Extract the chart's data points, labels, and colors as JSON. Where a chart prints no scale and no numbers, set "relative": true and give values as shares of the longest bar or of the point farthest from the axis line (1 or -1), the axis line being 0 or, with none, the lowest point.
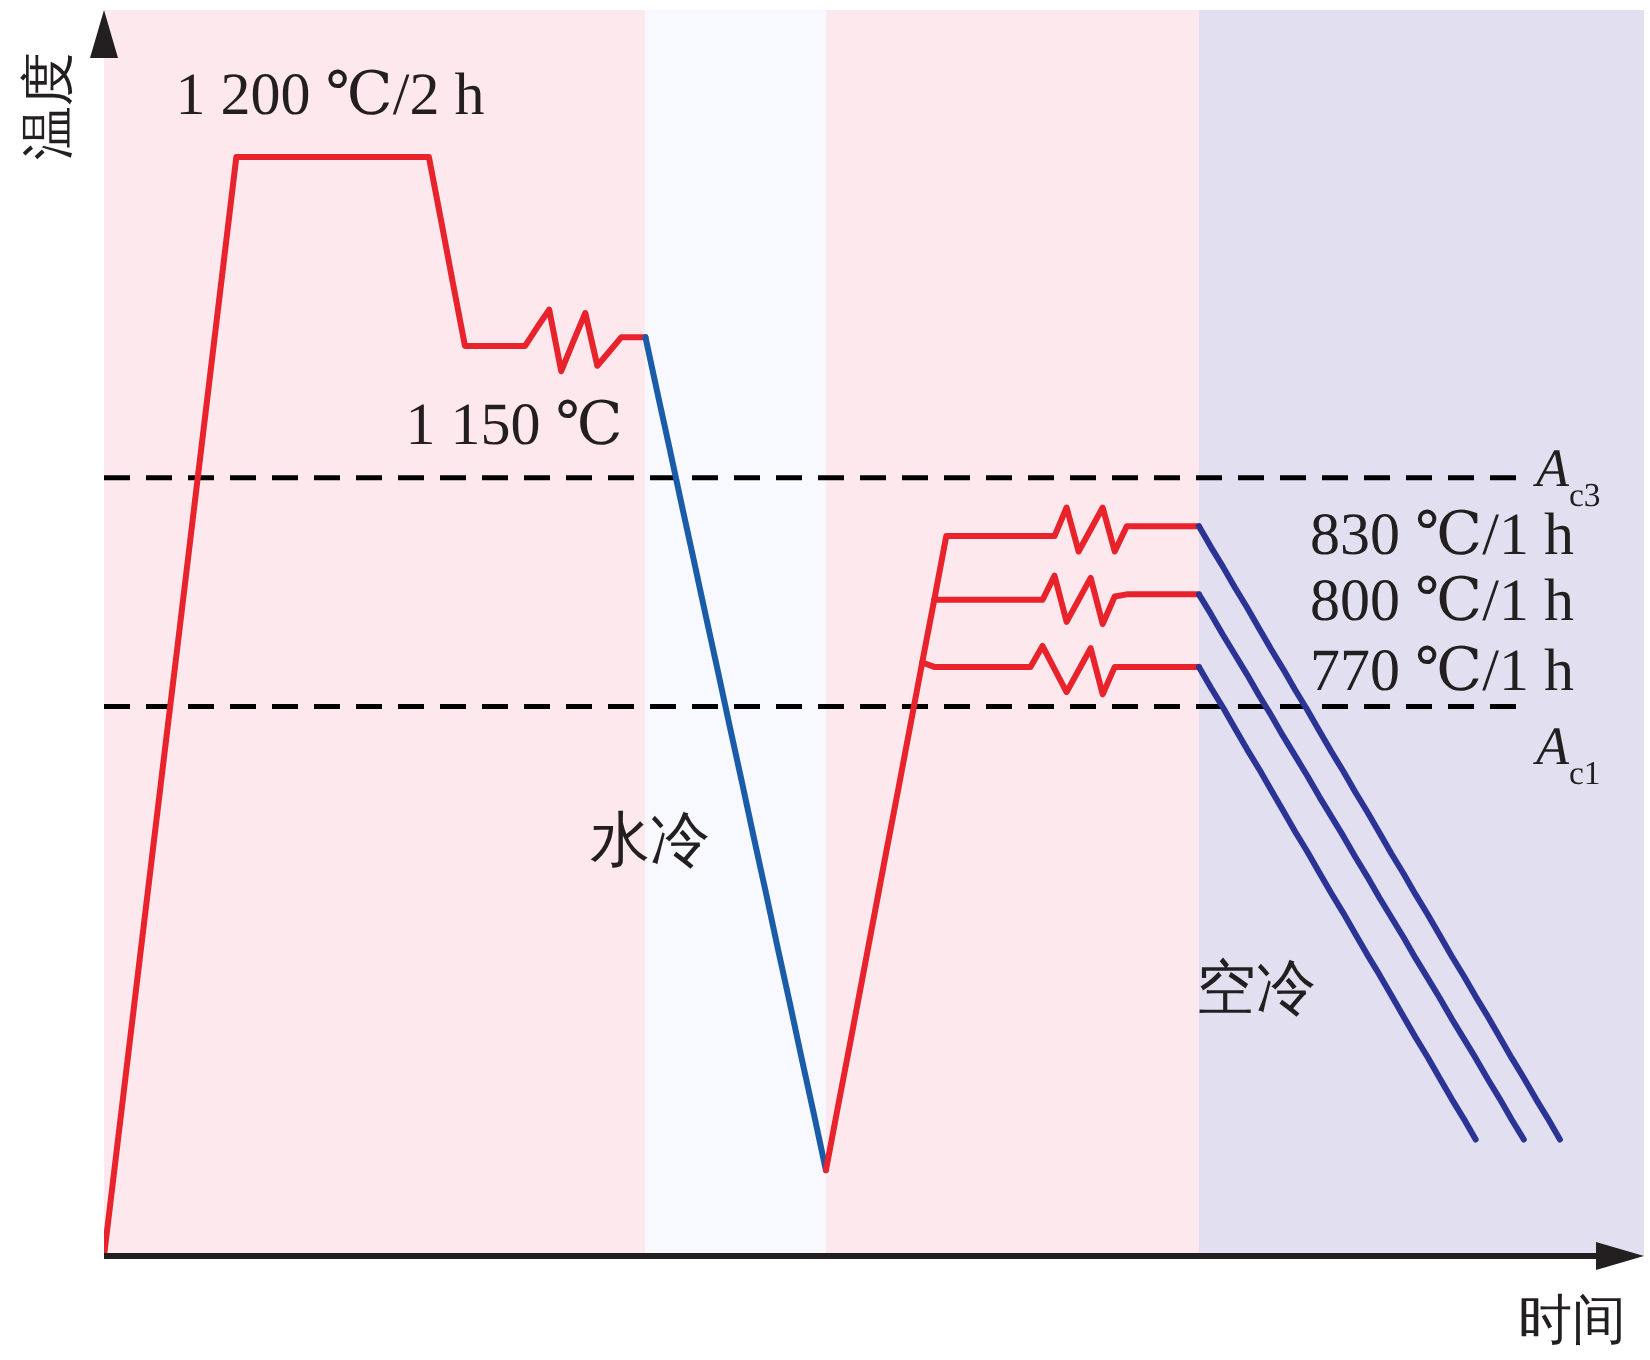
{
  "chart_data": {
    "type": "line",
    "relative": true,
    "ylabel": "温度",
    "xlabel": "时间",
    "categories": [
      null,
      null,
      null,
      null,
      null,
      null,
      null,
      null,
      null,
      null,
      null,
      null,
      null,
      null,
      null,
      null,
      null,
      null,
      null,
      null,
      null,
      null,
      null,
      null,
      null,
      null,
      null,
      null,
      null,
      null,
      null,
      null,
      null,
      null,
      null,
      null,
      null,
      null,
      null,
      null,
      null,
      null,
      null,
      null,
      null,
      null,
      null,
      null,
      null,
      null,
      null,
      null,
      null,
      null,
      null,
      null,
      null,
      null,
      null,
      null,
      null,
      null,
      null,
      null,
      null,
      null,
      null,
      null,
      null,
      null,
      null,
      null,
      null,
      null,
      null,
      null,
      null,
      null,
      null,
      null,
      null,
      null,
      null,
      null,
      null,
      null,
      null,
      null,
      null,
      null,
      null,
      null,
      null,
      null,
      null,
      null,
      null,
      null,
      null,
      null,
      null,
      null,
      null,
      null,
      null,
      null,
      null,
      null,
      null,
      null,
      null,
      null,
      null,
      null,
      null,
      null,
      null,
      null,
      null,
      null,
      null,
      null,
      null,
      null,
      null
    ],
    "series": [
      {
        "color": "#e8232b",
        "values": [
          0,
          0.091,
          0.182,
          0.273,
          0.364,
          0.455,
          0.545,
          0.636,
          0.727,
          0.818,
          0.909,
          1,
          1,
          1,
          1,
          1,
          1,
          1,
          1,
          1,
          1,
          1,
          1,
          1,
          1,
          1,
          1,
          1,
          0.943,
          0.885,
          0.828,
          0.828,
          0.828,
          0.828,
          0.828,
          0.828,
          0.845,
          0.861,
          0.805,
          0.832,
          0.858,
          0.81,
          0.823,
          0.836,
          0.836,
          0.836,
          null,
          null,
          null,
          null,
          null,
          null,
          null,
          null,
          null,
          null,
          null,
          null,
          null,
          null,
          null,
          null,
          null,
          null,
          null,
          null,
          null,
          null,
          null,
          null,
          null,
          null,
          null,
          null,
          null,
          null,
          null,
          null,
          null,
          null,
          null,
          null,
          null,
          null,
          null,
          null,
          null,
          null,
          null,
          null,
          null,
          null,
          null,
          null,
          null,
          null,
          null,
          null,
          null,
          null,
          null,
          null,
          null,
          null,
          null,
          null,
          null,
          null,
          null,
          null,
          null,
          null,
          null,
          null,
          null,
          null,
          null,
          null,
          null,
          null,
          null,
          null,
          null,
          null,
          null
        ]
      },
      {
        "color": "#1a5ca8",
        "values": [
          null,
          null,
          null,
          null,
          null,
          null,
          null,
          null,
          null,
          null,
          null,
          null,
          null,
          null,
          null,
          null,
          null,
          null,
          null,
          null,
          null,
          null,
          null,
          null,
          null,
          null,
          null,
          null,
          null,
          null,
          null,
          null,
          null,
          null,
          null,
          null,
          null,
          null,
          null,
          null,
          null,
          null,
          null,
          null,
          null,
          0.836,
          0.785,
          0.735,
          0.684,
          0.634,
          0.583,
          0.533,
          0.482,
          0.432,
          0.381,
          0.331,
          0.28,
          0.23,
          0.179,
          0.129,
          0.078,
          null,
          null,
          null,
          null,
          null,
          null,
          null,
          null,
          null,
          null,
          null,
          null,
          null,
          null,
          null,
          null,
          null,
          null,
          null,
          null,
          null,
          null,
          null,
          null,
          null,
          null,
          null,
          null,
          null,
          null,
          null,
          null,
          null,
          null,
          null,
          null,
          null,
          null,
          null,
          null,
          null,
          null,
          null,
          null,
          null,
          null,
          null,
          null,
          null,
          null,
          null,
          null,
          null,
          null,
          null,
          null,
          null,
          null,
          null,
          null,
          null,
          null,
          null,
          null
        ]
      },
      {
        "color": "#e8232b",
        "values": [
          null,
          null,
          null,
          null,
          null,
          null,
          null,
          null,
          null,
          null,
          null,
          null,
          null,
          null,
          null,
          null,
          null,
          null,
          null,
          null,
          null,
          null,
          null,
          null,
          null,
          null,
          null,
          null,
          null,
          null,
          null,
          null,
          null,
          null,
          null,
          null,
          null,
          null,
          null,
          null,
          null,
          null,
          null,
          null,
          null,
          null,
          null,
          null,
          null,
          null,
          null,
          null,
          null,
          null,
          null,
          null,
          null,
          null,
          null,
          null,
          0.078,
          0.136,
          0.193,
          0.251,
          0.309,
          0.367,
          0.424,
          0.482,
          0.54,
          0.597,
          0.655,
          0.655,
          0.655,
          0.655,
          0.655,
          0.655,
          0.655,
          0.655,
          0.655,
          0.655,
          0.681,
          0.641,
          0.661,
          0.681,
          0.641,
          0.664,
          0.664,
          0.664,
          0.664,
          0.664,
          0.664,
          0.664,
          null,
          null,
          null,
          null,
          null,
          null,
          null,
          null,
          null,
          null,
          null,
          null,
          null,
          null,
          null,
          null,
          null,
          null,
          null,
          null,
          null,
          null,
          null,
          null,
          null,
          null,
          null,
          null,
          null,
          null,
          null,
          null,
          null
        ]
      },
      {
        "color": "#e8232b",
        "values": [
          null,
          null,
          null,
          null,
          null,
          null,
          null,
          null,
          null,
          null,
          null,
          null,
          null,
          null,
          null,
          null,
          null,
          null,
          null,
          null,
          null,
          null,
          null,
          null,
          null,
          null,
          null,
          null,
          null,
          null,
          null,
          null,
          null,
          null,
          null,
          null,
          null,
          null,
          null,
          null,
          null,
          null,
          null,
          null,
          null,
          null,
          null,
          null,
          null,
          null,
          null,
          null,
          null,
          null,
          null,
          null,
          null,
          null,
          null,
          null,
          null,
          null,
          null,
          null,
          null,
          null,
          null,
          null,
          null,
          0.597,
          0.597,
          0.597,
          0.597,
          0.597,
          0.597,
          0.597,
          0.597,
          0.597,
          0.597,
          0.619,
          0.577,
          0.597,
          0.617,
          0.575,
          0.6,
          0.602,
          0.602,
          0.602,
          0.602,
          0.602,
          0.602,
          0.602,
          null,
          null,
          null,
          null,
          null,
          null,
          null,
          null,
          null,
          null,
          null,
          null,
          null,
          null,
          null,
          null,
          null,
          null,
          null,
          null,
          null,
          null,
          null,
          null,
          null,
          null,
          null,
          null,
          null,
          null,
          null,
          null,
          null
        ]
      },
      {
        "color": "#e8232b",
        "values": [
          null,
          null,
          null,
          null,
          null,
          null,
          null,
          null,
          null,
          null,
          null,
          null,
          null,
          null,
          null,
          null,
          null,
          null,
          null,
          null,
          null,
          null,
          null,
          null,
          null,
          null,
          null,
          null,
          null,
          null,
          null,
          null,
          null,
          null,
          null,
          null,
          null,
          null,
          null,
          null,
          null,
          null,
          null,
          null,
          null,
          null,
          null,
          null,
          null,
          null,
          null,
          null,
          null,
          null,
          null,
          null,
          null,
          null,
          null,
          null,
          null,
          null,
          null,
          null,
          null,
          null,
          null,
          null,
          0.54,
          0.536,
          0.536,
          0.536,
          0.536,
          0.536,
          0.536,
          0.536,
          0.536,
          0.536,
          0.555,
          0.534,
          0.513,
          0.533,
          0.553,
          0.511,
          0.536,
          0.536,
          0.536,
          0.536,
          0.536,
          0.536,
          0.536,
          0.536,
          null,
          null,
          null,
          null,
          null,
          null,
          null,
          null,
          null,
          null,
          null,
          null,
          null,
          null,
          null,
          null,
          null,
          null,
          null,
          null,
          null,
          null,
          null,
          null,
          null,
          null,
          null,
          null,
          null,
          null,
          null,
          null,
          null
        ]
      },
      {
        "color": "#2b3494",
        "values": [
          null,
          null,
          null,
          null,
          null,
          null,
          null,
          null,
          null,
          null,
          null,
          null,
          null,
          null,
          null,
          null,
          null,
          null,
          null,
          null,
          null,
          null,
          null,
          null,
          null,
          null,
          null,
          null,
          null,
          null,
          null,
          null,
          null,
          null,
          null,
          null,
          null,
          null,
          null,
          null,
          null,
          null,
          null,
          null,
          null,
          null,
          null,
          null,
          null,
          null,
          null,
          null,
          null,
          null,
          null,
          null,
          null,
          null,
          null,
          null,
          null,
          null,
          null,
          null,
          null,
          null,
          null,
          null,
          null,
          null,
          null,
          null,
          null,
          null,
          null,
          null,
          null,
          null,
          null,
          null,
          null,
          null,
          null,
          null,
          null,
          null,
          null,
          null,
          null,
          null,
          null,
          0.664,
          0.645,
          0.627,
          0.608,
          0.59,
          0.571,
          0.552,
          0.534,
          0.515,
          0.497,
          0.478,
          0.459,
          0.441,
          0.422,
          0.404,
          0.385,
          0.366,
          0.348,
          0.329,
          0.311,
          0.292,
          0.273,
          0.255,
          0.236,
          0.218,
          0.199,
          0.18,
          0.162,
          0.143,
          0.125,
          0.106,
          null,
          null,
          null
        ]
      },
      {
        "color": "#2b3494",
        "values": [
          null,
          null,
          null,
          null,
          null,
          null,
          null,
          null,
          null,
          null,
          null,
          null,
          null,
          null,
          null,
          null,
          null,
          null,
          null,
          null,
          null,
          null,
          null,
          null,
          null,
          null,
          null,
          null,
          null,
          null,
          null,
          null,
          null,
          null,
          null,
          null,
          null,
          null,
          null,
          null,
          null,
          null,
          null,
          null,
          null,
          null,
          null,
          null,
          null,
          null,
          null,
          null,
          null,
          null,
          null,
          null,
          null,
          null,
          null,
          null,
          null,
          null,
          null,
          null,
          null,
          null,
          null,
          null,
          null,
          null,
          null,
          null,
          null,
          null,
          null,
          null,
          null,
          null,
          null,
          null,
          null,
          null,
          null,
          null,
          null,
          null,
          null,
          null,
          null,
          null,
          null,
          0.602,
          0.584,
          0.565,
          0.547,
          0.529,
          0.51,
          0.492,
          0.473,
          0.455,
          0.437,
          0.418,
          0.4,
          0.382,
          0.363,
          0.345,
          0.326,
          0.308,
          0.29,
          0.271,
          0.253,
          0.235,
          0.216,
          0.198,
          0.18,
          0.161,
          0.143,
          0.124,
          0.106,
          null,
          null,
          null,
          null,
          null,
          null
        ]
      },
      {
        "color": "#2b3494",
        "values": [
          null,
          null,
          null,
          null,
          null,
          null,
          null,
          null,
          null,
          null,
          null,
          null,
          null,
          null,
          null,
          null,
          null,
          null,
          null,
          null,
          null,
          null,
          null,
          null,
          null,
          null,
          null,
          null,
          null,
          null,
          null,
          null,
          null,
          null,
          null,
          null,
          null,
          null,
          null,
          null,
          null,
          null,
          null,
          null,
          null,
          null,
          null,
          null,
          null,
          null,
          null,
          null,
          null,
          null,
          null,
          null,
          null,
          null,
          null,
          null,
          null,
          null,
          null,
          null,
          null,
          null,
          null,
          null,
          null,
          null,
          null,
          null,
          null,
          null,
          null,
          null,
          null,
          null,
          null,
          null,
          null,
          null,
          null,
          null,
          null,
          null,
          null,
          null,
          null,
          null,
          null,
          0.536,
          0.517,
          0.499,
          0.48,
          0.461,
          0.443,
          0.424,
          0.405,
          0.386,
          0.368,
          0.349,
          0.33,
          0.312,
          0.293,
          0.274,
          0.256,
          0.237,
          0.218,
          0.199,
          0.181,
          0.162,
          0.143,
          0.125,
          0.106,
          null,
          null,
          null,
          null,
          null,
          null,
          null,
          null,
          null,
          null
        ]
      }
    ],
    "ref_lines": [
      {
        "axis": "y",
        "value": 0.708,
        "label": "A$_{c3}$",
        "color": "#000000",
        "line_style": "dashed"
      },
      {
        "axis": "y",
        "value": 0.5,
        "label": "A$_{c1}$",
        "color": "#000000",
        "line_style": "dashed"
      }
    ],
    "annotations": [
      "1 200 ℃/2 h",
      "1 150 ℃",
      "830 ℃/1 h",
      "800 ℃/1 h",
      "770 ℃/1 h",
      "水冷",
      "空冷"
    ]
  }
}
